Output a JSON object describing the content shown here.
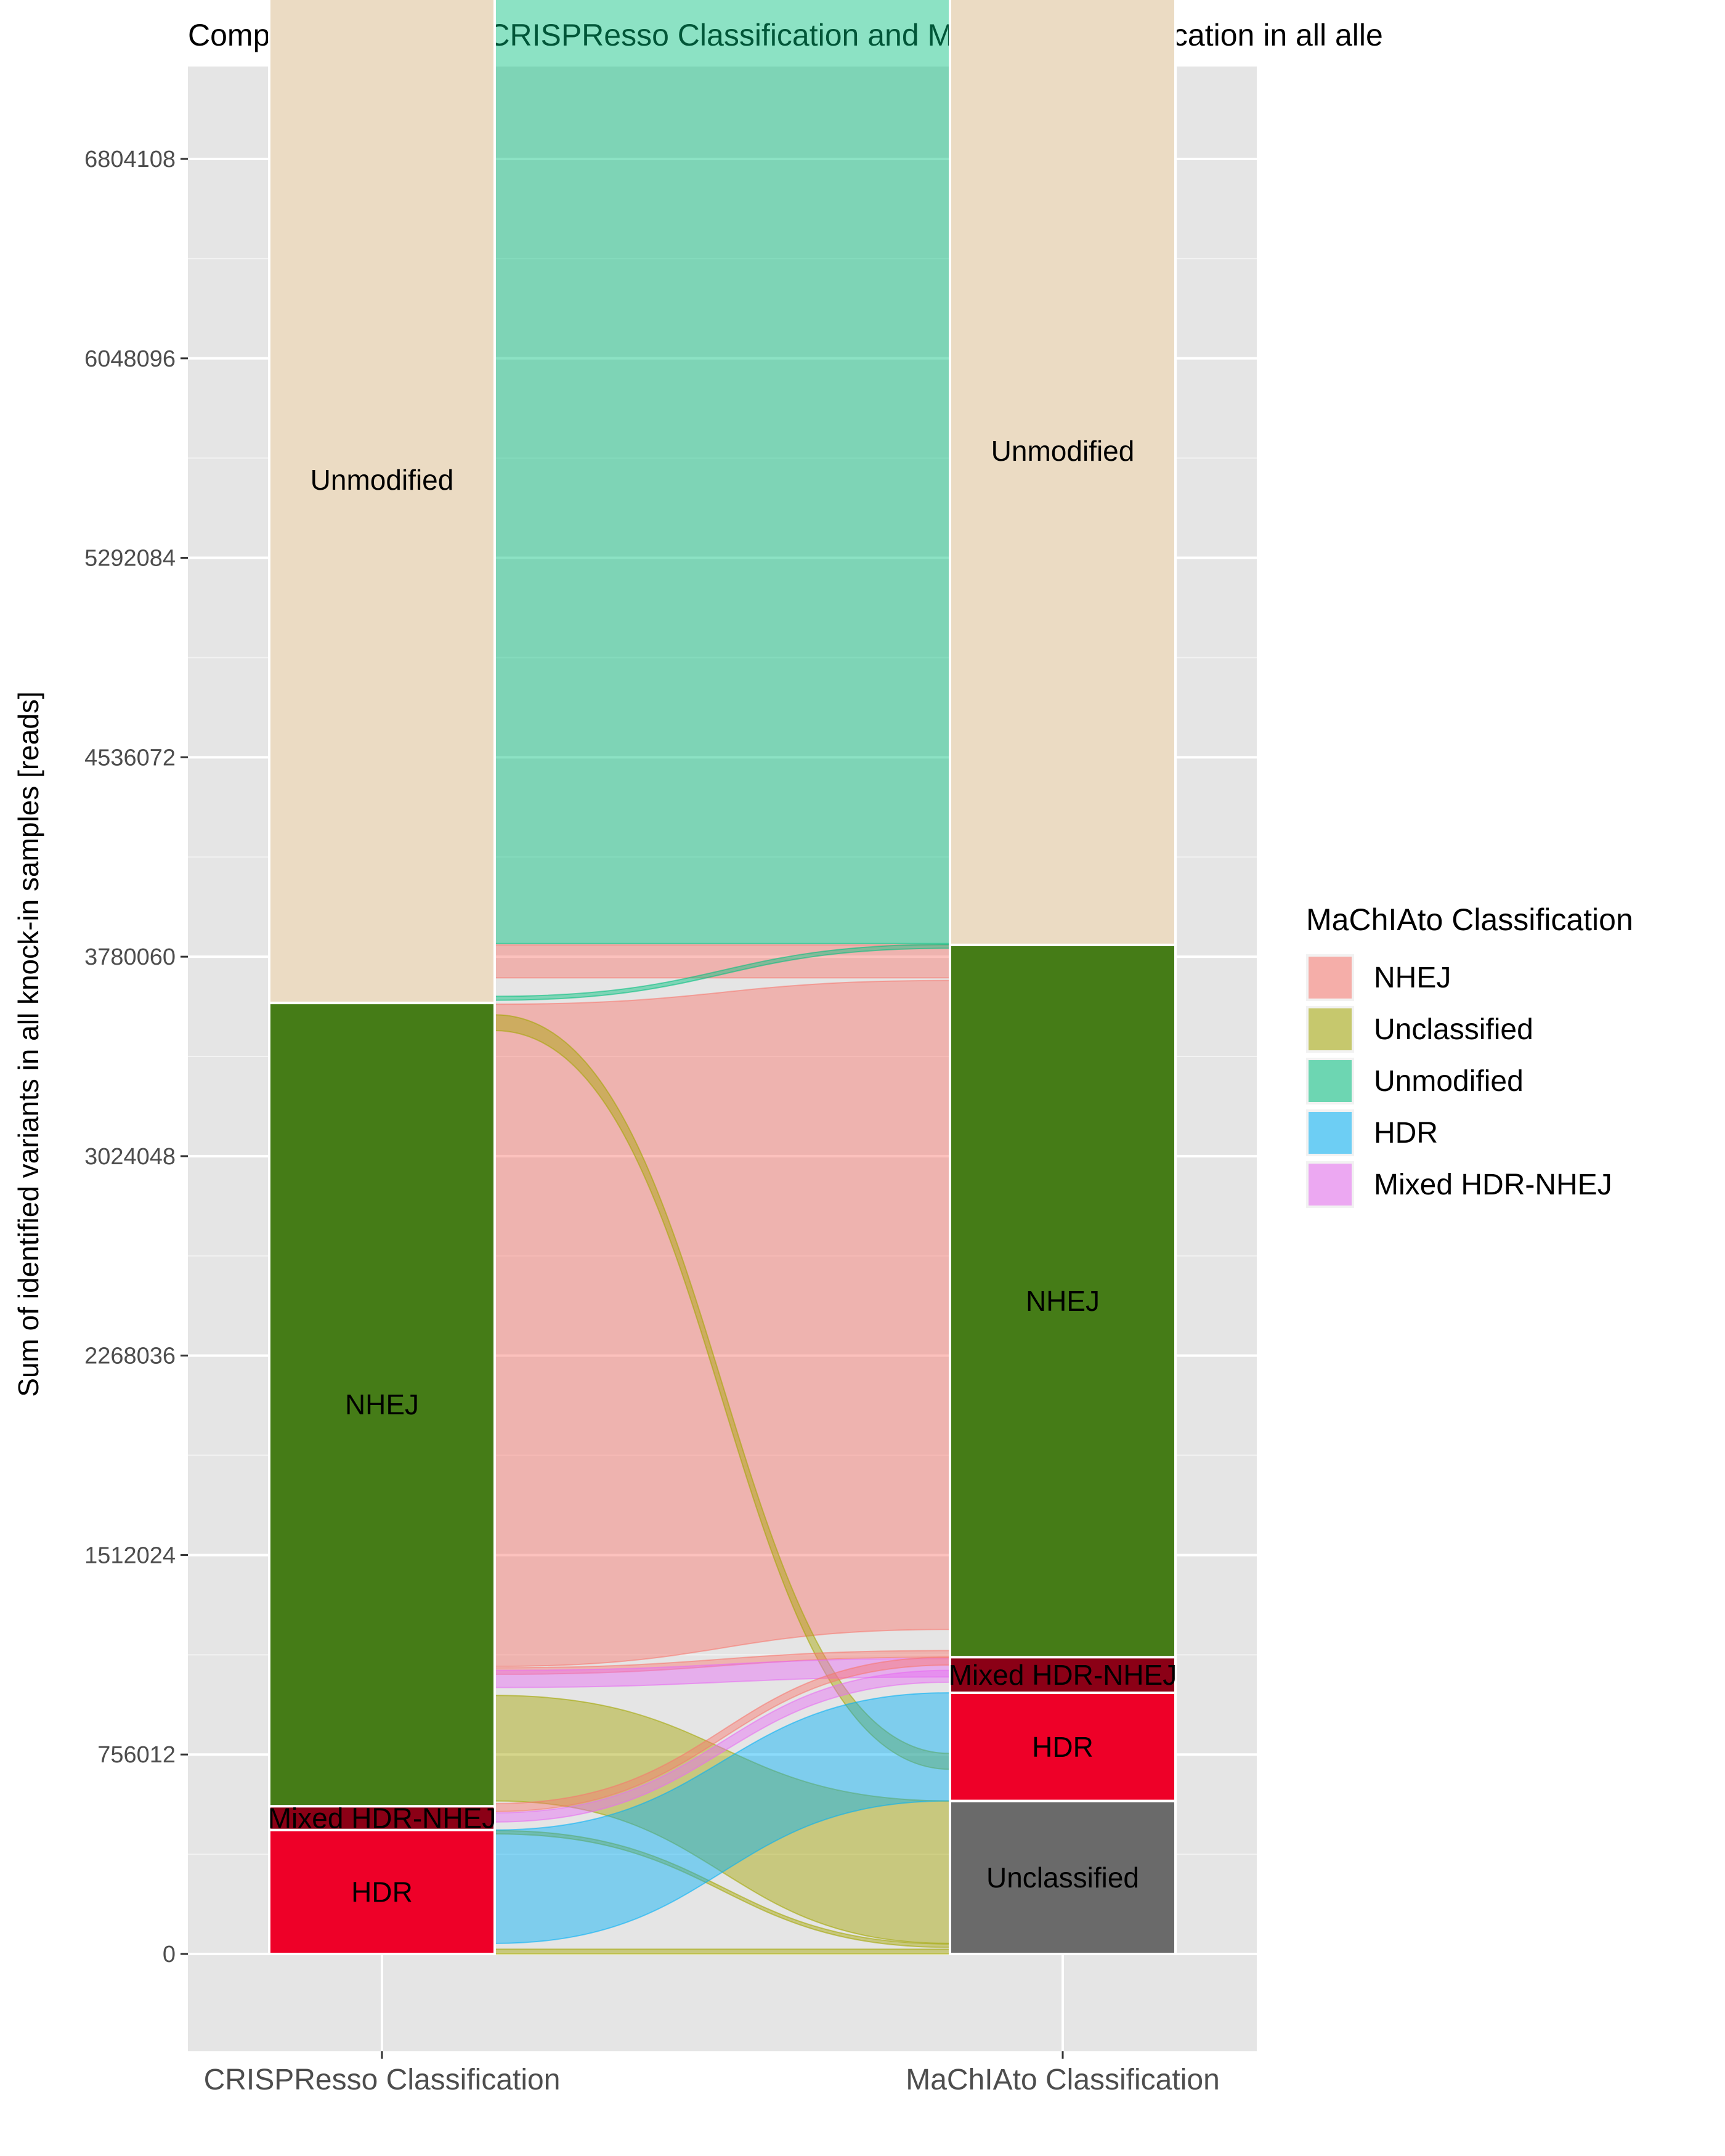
{
  "chart_data": {
    "type": "alluvial",
    "title": "Comparison between CRISPResso Classification and MaChIAto Classification in all alle",
    "ylabel": "Sum of identified variants in all knock-in samples [reads]",
    "xlabel": "",
    "axes": [
      "CRISPResso Classification",
      "MaChIAto Classification"
    ],
    "y_ticks": [
      0,
      756012,
      1512024,
      2268036,
      3024048,
      3780060,
      4536072,
      5292084,
      6048096,
      6804108
    ],
    "ylim": [
      -370000,
      7970000
    ],
    "grid": true,
    "legend": {
      "title": "MaChIAto Classification",
      "position": "right",
      "items": [
        {
          "label": "NHEJ",
          "color": "#F8766D"
        },
        {
          "label": "Unclassified",
          "color": "#A3A500"
        },
        {
          "label": "Unmodified",
          "color": "#00BF7D"
        },
        {
          "label": "HDR",
          "color": "#00B0F6"
        },
        {
          "label": "Mixed HDR-NHEJ",
          "color": "#E76BF3"
        }
      ]
    },
    "strata": [
      {
        "axis": 0,
        "label": "HDR",
        "y0": 0,
        "y1": 470000,
        "color": "#EE0028"
      },
      {
        "axis": 0,
        "label": "Mixed HDR-NHEJ",
        "y0": 470000,
        "y1": 560000,
        "color": "#8B0016"
      },
      {
        "axis": 0,
        "label": "NHEJ",
        "y0": 560000,
        "y1": 3605000,
        "color": "#457C17"
      },
      {
        "axis": 0,
        "label": "Unmodified",
        "y0": 3605000,
        "y1": 7570000,
        "color": "#EBDBC3"
      },
      {
        "axis": 1,
        "label": "Unclassified",
        "y0": 0,
        "y1": 580000,
        "color": "#6A6A6A"
      },
      {
        "axis": 1,
        "label": "HDR",
        "y0": 580000,
        "y1": 990000,
        "color": "#EE0028"
      },
      {
        "axis": 1,
        "label": "Mixed HDR-NHEJ",
        "y0": 990000,
        "y1": 1125000,
        "color": "#8B0016"
      },
      {
        "axis": 1,
        "label": "NHEJ",
        "y0": 1125000,
        "y1": 3825000,
        "color": "#457C17"
      },
      {
        "axis": 1,
        "label": "Unmodified",
        "y0": 3825000,
        "y1": 7570000,
        "color": "#EBDBC3"
      }
    ],
    "flows": [
      {
        "from": "Unmodified",
        "to": "Unmodified",
        "class": "Unmodified",
        "y0_left": 3830000,
        "y1_left": 7570000,
        "y0_right": 3830000,
        "y1_right": 7570000,
        "color": "#00BF7D"
      },
      {
        "from": "Unmodified",
        "to": "NHEJ",
        "class": "NHEJ",
        "y0_left": 3700000,
        "y1_left": 3825000,
        "y0_right": 3700000,
        "y1_right": 3825000,
        "color": "#F8766D"
      },
      {
        "from": "NHEJ",
        "to": "Unmodified",
        "class": "Unmodified",
        "y0_left": 3615000,
        "y1_left": 3630000,
        "y0_right": 3812000,
        "y1_right": 3827000,
        "color": "#00BF7D"
      },
      {
        "from": "NHEJ",
        "to": "NHEJ",
        "class": "NHEJ",
        "y0_left": 1090000,
        "y1_left": 3600000,
        "y0_right": 1230000,
        "y1_right": 3690000,
        "color": "#F8766D"
      },
      {
        "from": "NHEJ",
        "to": "Unclassified",
        "class": "Unclassified",
        "y0_left": 3500000,
        "y1_left": 3560000,
        "y0_right": 700000,
        "y1_right": 760000,
        "color": "#A3A500"
      },
      {
        "from": "NHEJ",
        "to": "NHEJ",
        "class": "NHEJ",
        "y0_left": 1060000,
        "y1_left": 1085000,
        "y0_right": 1125000,
        "y1_right": 1150000,
        "color": "#F8766D"
      },
      {
        "from": "NHEJ",
        "to": "Mixed HDR-NHEJ",
        "class": "Mixed HDR-NHEJ",
        "y0_left": 1010000,
        "y1_left": 1075000,
        "y0_right": 1050000,
        "y1_right": 1120000,
        "color": "#E76BF3"
      },
      {
        "from": "NHEJ",
        "to": "Unclassified",
        "class": "Unclassified",
        "y0_left": 580000,
        "y1_left": 980000,
        "y0_right": 40000,
        "y1_right": 580000,
        "color": "#A3A500"
      },
      {
        "from": "Mixed HDR-NHEJ",
        "to": "NHEJ",
        "class": "NHEJ",
        "y0_left": 540000,
        "y1_left": 570000,
        "y0_right": 1095000,
        "y1_right": 1125000,
        "color": "#F8766D"
      },
      {
        "from": "Mixed HDR-NHEJ",
        "to": "Mixed HDR-NHEJ",
        "class": "Mixed HDR-NHEJ",
        "y0_left": 500000,
        "y1_left": 535000,
        "y0_right": 1030000,
        "y1_right": 1075000,
        "color": "#E76BF3"
      },
      {
        "from": "HDR",
        "to": "Unclassified",
        "class": "Unclassified",
        "y0_left": 455000,
        "y1_left": 468000,
        "y0_right": 25000,
        "y1_right": 38000,
        "color": "#A3A500"
      },
      {
        "from": "HDR",
        "to": "HDR",
        "class": "HDR",
        "y0_left": 40000,
        "y1_left": 470000,
        "y0_right": 580000,
        "y1_right": 990000,
        "color": "#00B0F6"
      },
      {
        "from": "HDR",
        "to": "Unclassified",
        "class": "Unclassified",
        "y0_left": 0,
        "y1_left": 18000,
        "y0_right": 0,
        "y1_right": 18000,
        "color": "#A3A500"
      }
    ]
  }
}
